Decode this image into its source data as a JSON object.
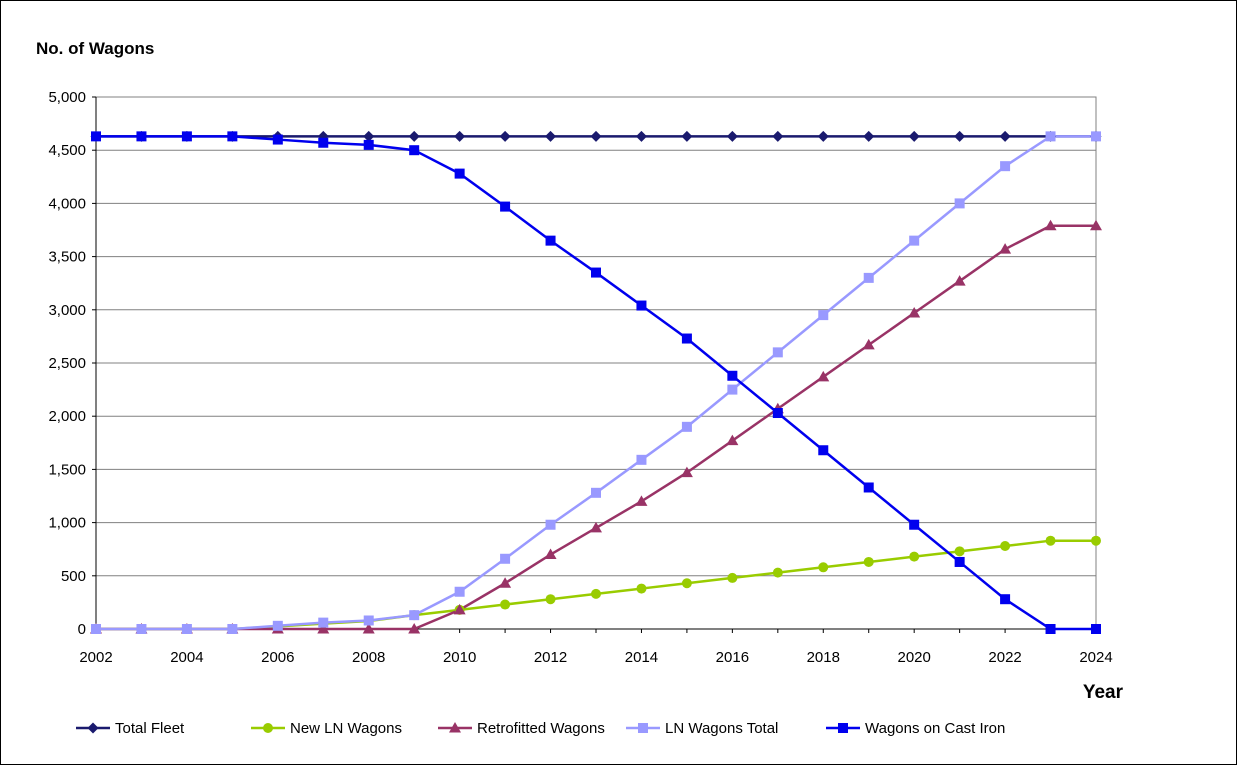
{
  "chart_data": {
    "type": "line",
    "title": "No. of Wagons",
    "xlabel": "Year",
    "ylabel": "",
    "xlim": [
      2002,
      2024
    ],
    "ylim": [
      0,
      5000
    ],
    "y_ticks": [
      0,
      500,
      1000,
      1500,
      2000,
      2500,
      3000,
      3500,
      4000,
      4500,
      5000
    ],
    "y_tick_labels": [
      "0",
      "500",
      "1,000",
      "1,500",
      "2,000",
      "2,500",
      "3,000",
      "3,500",
      "4,000",
      "4,500",
      "5,000"
    ],
    "x_ticks": [
      2002,
      2004,
      2006,
      2008,
      2010,
      2012,
      2014,
      2016,
      2018,
      2020,
      2022,
      2024
    ],
    "x_tick_labels": [
      "2002",
      "2004",
      "2006",
      "2008",
      "2010",
      "2012",
      "2014",
      "2016",
      "2018",
      "2020",
      "2022",
      "2024"
    ],
    "grid": "horizontal",
    "legend_position": "bottom",
    "x": [
      2002,
      2003,
      2004,
      2005,
      2006,
      2007,
      2008,
      2009,
      2010,
      2011,
      2012,
      2013,
      2014,
      2015,
      2016,
      2017,
      2018,
      2019,
      2020,
      2021,
      2022,
      2023,
      2024
    ],
    "series": [
      {
        "name": "Total Fleet",
        "color": "#1a1a6e",
        "marker": "diamond",
        "values": [
          4630,
          4630,
          4630,
          4630,
          4630,
          4630,
          4630,
          4630,
          4630,
          4630,
          4630,
          4630,
          4630,
          4630,
          4630,
          4630,
          4630,
          4630,
          4630,
          4630,
          4630,
          4630,
          4630
        ]
      },
      {
        "name": "New LN Wagons",
        "color": "#99cc00",
        "marker": "circle",
        "values": [
          0,
          0,
          0,
          0,
          25,
          50,
          75,
          130,
          180,
          230,
          280,
          330,
          380,
          430,
          480,
          530,
          580,
          630,
          680,
          730,
          780,
          830,
          830
        ]
      },
      {
        "name": "Retrofitted Wagons",
        "color": "#993366",
        "marker": "triangle",
        "values": [
          0,
          0,
          0,
          0,
          0,
          0,
          0,
          0,
          180,
          430,
          700,
          950,
          1200,
          1470,
          1770,
          2070,
          2370,
          2670,
          2970,
          3270,
          3570,
          3790,
          3790
        ]
      },
      {
        "name": "LN Wagons Total",
        "color": "#9999ff",
        "marker": "square",
        "values": [
          0,
          0,
          0,
          0,
          30,
          60,
          80,
          130,
          350,
          660,
          980,
          1280,
          1590,
          1900,
          2250,
          2600,
          2950,
          3300,
          3650,
          4000,
          4350,
          4630,
          4630
        ]
      },
      {
        "name": "Wagons on Cast Iron",
        "color": "#0000ee",
        "marker": "square",
        "values": [
          4630,
          4630,
          4630,
          4630,
          4600,
          4570,
          4550,
          4500,
          4280,
          3970,
          3650,
          3350,
          3040,
          2730,
          2380,
          2030,
          1680,
          1330,
          980,
          630,
          280,
          0,
          0
        ]
      }
    ]
  }
}
